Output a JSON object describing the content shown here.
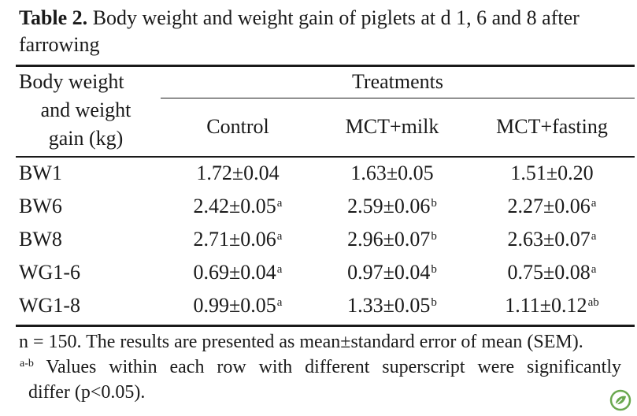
{
  "caption": {
    "label": "Table 2.",
    "text": " Body weight and weight gain of piglets at d 1, 6 and 8 after farrowing"
  },
  "header": {
    "stub_lines": [
      "Body weight",
      "and weight",
      "gain (kg)"
    ],
    "group": "Treatments",
    "columns": [
      "Control",
      "MCT+milk",
      "MCT+fasting"
    ]
  },
  "rows": [
    {
      "label": "BW1",
      "cells": [
        {
          "v": "1.72±0.04",
          "s": ""
        },
        {
          "v": "1.63±0.05",
          "s": ""
        },
        {
          "v": "1.51±0.20",
          "s": ""
        }
      ]
    },
    {
      "label": "BW6",
      "cells": [
        {
          "v": "2.42±0.05",
          "s": "a"
        },
        {
          "v": "2.59±0.06",
          "s": "b"
        },
        {
          "v": "2.27±0.06",
          "s": "a"
        }
      ]
    },
    {
      "label": "BW8",
      "cells": [
        {
          "v": "2.71±0.06",
          "s": "a"
        },
        {
          "v": "2.96±0.07",
          "s": "b"
        },
        {
          "v": "2.63±0.07",
          "s": "a"
        }
      ]
    },
    {
      "label": "WG1-6",
      "cells": [
        {
          "v": "0.69±0.04",
          "s": "a"
        },
        {
          "v": "0.97±0.04",
          "s": "b"
        },
        {
          "v": "0.75±0.08",
          "s": "a"
        }
      ]
    },
    {
      "label": "WG1-8",
      "cells": [
        {
          "v": "0.99±0.05",
          "s": "a"
        },
        {
          "v": "1.33±0.05",
          "s": "b"
        },
        {
          "v": "1.11±0.12",
          "s": "ab"
        }
      ]
    }
  ],
  "notes": {
    "line1": "n = 150. The results are presented as mean±standard error of mean (SEM).",
    "line2_sup": "a-b",
    "line2": " Values within each row with different superscript were significantly",
    "line3": "differ (p<0.05)."
  },
  "colors": {
    "text": "#1a1a1a",
    "logo": "#6aa84f"
  },
  "icons": {
    "corner_logo": "leaf-logo-icon"
  }
}
